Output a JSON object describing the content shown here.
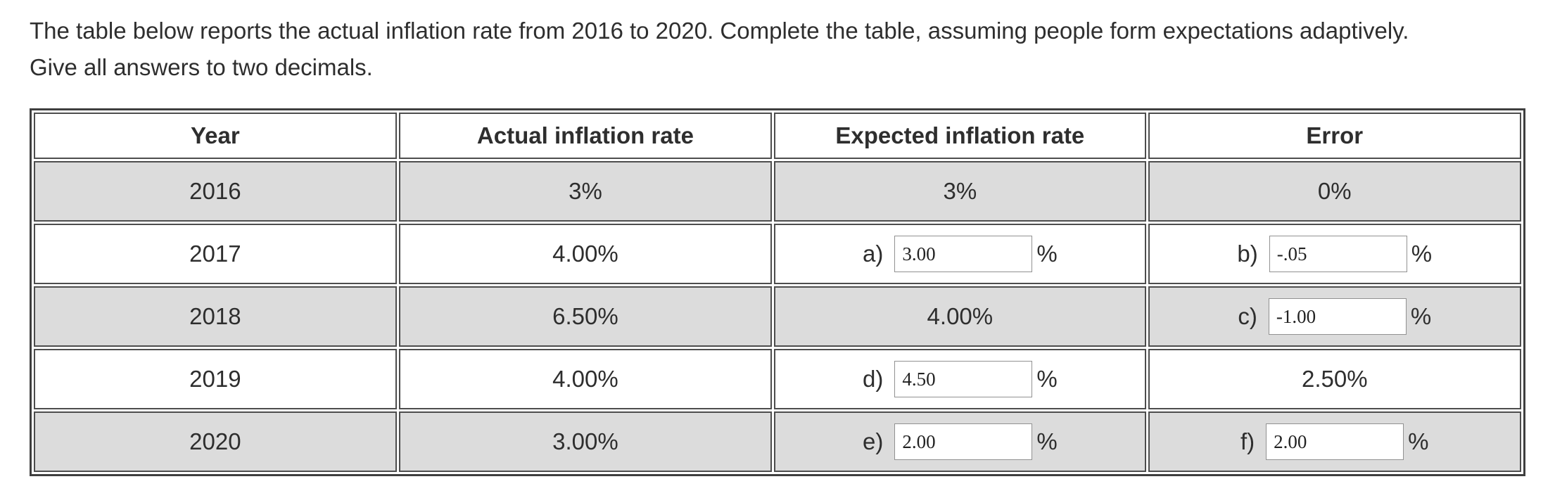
{
  "instructions": {
    "line1": "The table below reports the actual inflation rate from 2016 to 2020. Complete the table, assuming people form expectations adaptively.",
    "line2": "Give all answers to two decimals."
  },
  "table": {
    "headers": {
      "year": "Year",
      "actual": "Actual inflation rate",
      "expected": "Expected inflation rate",
      "error": "Error"
    },
    "percent_sign": "%",
    "rows": [
      {
        "year": "2016",
        "actual": "3%",
        "expected_text": "3%",
        "error_text": "0%"
      },
      {
        "year": "2017",
        "actual": "4.00%",
        "expected_label": "a)",
        "expected_value": "3.00",
        "error_label": "b)",
        "error_value": "-.05"
      },
      {
        "year": "2018",
        "actual": "6.50%",
        "expected_text": "4.00%",
        "error_label": "c)",
        "error_value": "-1.00"
      },
      {
        "year": "2019",
        "actual": "4.00%",
        "expected_label": "d)",
        "expected_value": "4.50",
        "error_text": "2.50%"
      },
      {
        "year": "2020",
        "actual": "3.00%",
        "expected_label": "e)",
        "expected_value": "2.00",
        "error_label": "f)",
        "error_value": "2.00"
      }
    ],
    "colors": {
      "row_shaded": "#dcdcdc",
      "row_plain": "#ffffff",
      "border": "#4d4d4d",
      "text": "#2e2e2e"
    }
  }
}
